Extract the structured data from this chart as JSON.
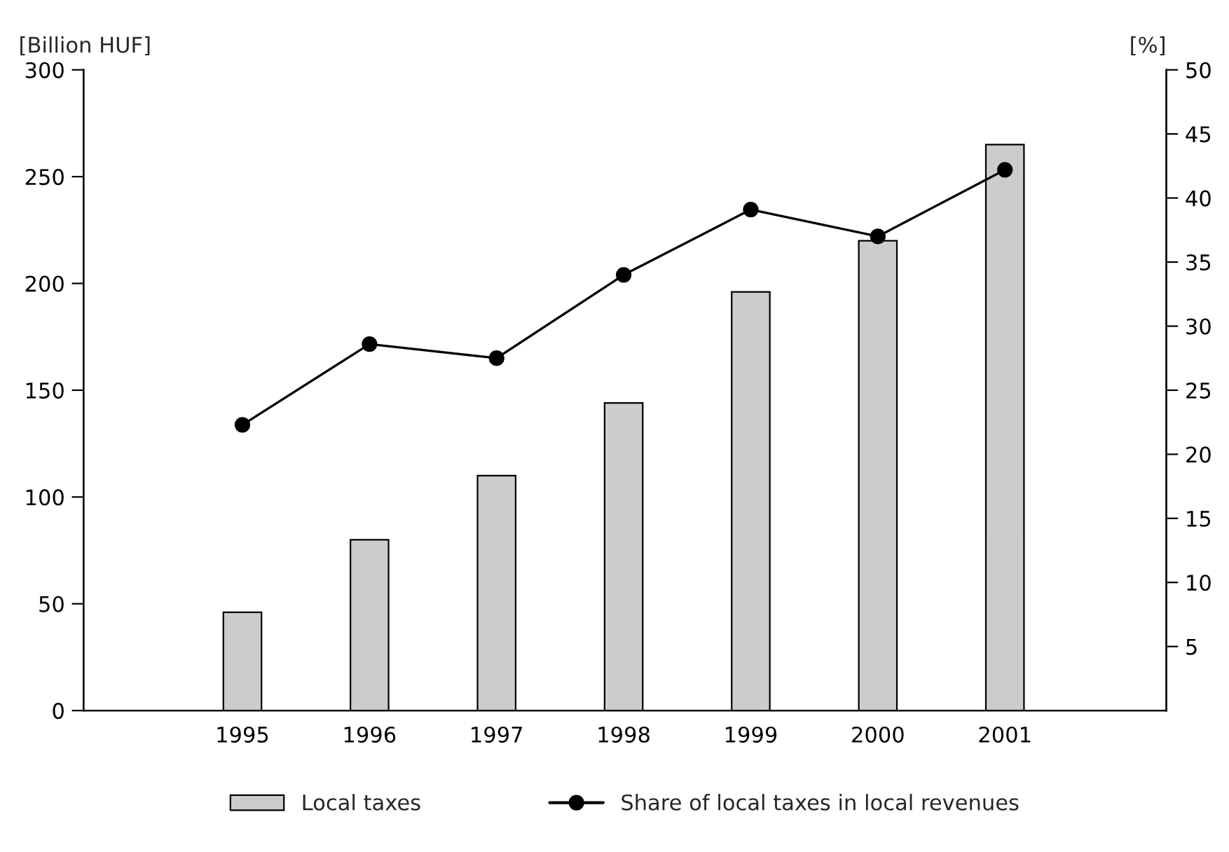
{
  "chart_data": {
    "type": "bar",
    "categories": [
      "1995",
      "1996",
      "1997",
      "1998",
      "1999",
      "2000",
      "2001"
    ],
    "series": [
      {
        "name": "Local taxes",
        "color": "#cccccc",
        "values": [
          46,
          80,
          110,
          144,
          196,
          220,
          265
        ]
      },
      {
        "name": "Share of local taxes in local revenues",
        "type": "line",
        "axis": "y2",
        "color": "#000000",
        "marker": "circle",
        "values": [
          22.3,
          28.6,
          27.5,
          34,
          39.1,
          37,
          42.2
        ]
      }
    ],
    "ylabel": "[Billion HUF]",
    "y2label": "[%]",
    "ylim": [
      0,
      300
    ],
    "yticks": [
      0,
      50,
      100,
      150,
      200,
      250,
      300
    ],
    "y2lim": [
      0,
      50
    ],
    "y2ticks": [
      5,
      10,
      15,
      20,
      25,
      30,
      35,
      40,
      45,
      50
    ],
    "grid": false,
    "legend": "bottom"
  }
}
